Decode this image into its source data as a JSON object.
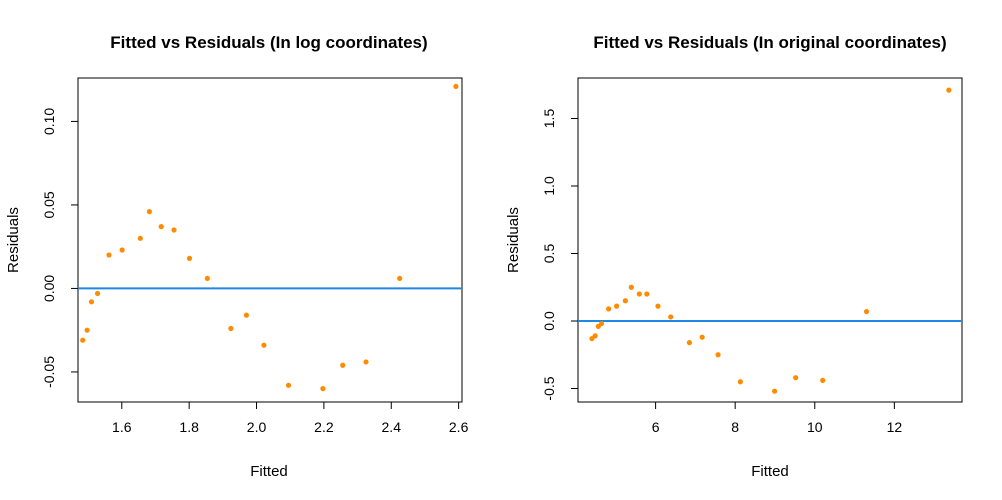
{
  "chart_data": [
    {
      "type": "scatter",
      "title": "Fitted vs Residuals (In log coordinates)",
      "xlabel": "Fitted",
      "ylabel": "Residuals",
      "xlim": [
        1.47,
        2.61
      ],
      "ylim": [
        -0.068,
        0.126
      ],
      "xticks": [
        1.6,
        1.8,
        2.0,
        2.2,
        2.4,
        2.6
      ],
      "xtick_labels": [
        "1.6",
        "1.8",
        "2.0",
        "2.2",
        "2.4",
        "2.6"
      ],
      "yticks": [
        -0.05,
        0.0,
        0.05,
        0.1
      ],
      "ytick_labels": [
        "-0.05",
        "0.00",
        "0.05",
        "0.10"
      ],
      "hline": 0,
      "hline_color": "#1e88e5",
      "point_color": "#ff8c00",
      "grid": false,
      "points": [
        {
          "x": 1.484,
          "y": -0.031
        },
        {
          "x": 1.497,
          "y": -0.025
        },
        {
          "x": 1.51,
          "y": -0.008
        },
        {
          "x": 1.528,
          "y": -0.003
        },
        {
          "x": 1.562,
          "y": 0.02
        },
        {
          "x": 1.601,
          "y": 0.023
        },
        {
          "x": 1.655,
          "y": 0.03
        },
        {
          "x": 1.682,
          "y": 0.046
        },
        {
          "x": 1.717,
          "y": 0.037
        },
        {
          "x": 1.755,
          "y": 0.035
        },
        {
          "x": 1.801,
          "y": 0.018
        },
        {
          "x": 1.854,
          "y": 0.006
        },
        {
          "x": 1.924,
          "y": -0.024
        },
        {
          "x": 1.97,
          "y": -0.016
        },
        {
          "x": 2.022,
          "y": -0.034
        },
        {
          "x": 2.095,
          "y": -0.058
        },
        {
          "x": 2.197,
          "y": -0.06
        },
        {
          "x": 2.256,
          "y": -0.046
        },
        {
          "x": 2.325,
          "y": -0.044
        },
        {
          "x": 2.425,
          "y": 0.006
        },
        {
          "x": 2.592,
          "y": 0.121
        }
      ]
    },
    {
      "type": "scatter",
      "title": "Fitted vs Residuals (In original coordinates)",
      "xlabel": "Fitted",
      "ylabel": "Residuals",
      "xlim": [
        4.05,
        13.7
      ],
      "ylim": [
        -0.6,
        1.8
      ],
      "xticks": [
        6,
        8,
        10,
        12
      ],
      "xtick_labels": [
        "6",
        "8",
        "10",
        "12"
      ],
      "yticks": [
        -0.5,
        0.0,
        0.5,
        1.0,
        1.5
      ],
      "ytick_labels": [
        "-0.5",
        "0.0",
        "0.5",
        "1.0",
        "1.5"
      ],
      "hline": 0,
      "hline_color": "#1e88e5",
      "point_color": "#ff8c00",
      "grid": false,
      "points": [
        {
          "x": 4.4,
          "y": -0.13
        },
        {
          "x": 4.48,
          "y": -0.11
        },
        {
          "x": 4.56,
          "y": -0.04
        },
        {
          "x": 4.64,
          "y": -0.02
        },
        {
          "x": 4.82,
          "y": 0.09
        },
        {
          "x": 5.02,
          "y": 0.11
        },
        {
          "x": 5.24,
          "y": 0.15
        },
        {
          "x": 5.39,
          "y": 0.25
        },
        {
          "x": 5.59,
          "y": 0.2
        },
        {
          "x": 5.78,
          "y": 0.2
        },
        {
          "x": 6.06,
          "y": 0.11
        },
        {
          "x": 6.38,
          "y": 0.03
        },
        {
          "x": 6.85,
          "y": -0.16
        },
        {
          "x": 7.17,
          "y": -0.12
        },
        {
          "x": 7.57,
          "y": -0.25
        },
        {
          "x": 8.13,
          "y": -0.45
        },
        {
          "x": 8.99,
          "y": -0.52
        },
        {
          "x": 9.52,
          "y": -0.42
        },
        {
          "x": 10.2,
          "y": -0.44
        },
        {
          "x": 11.3,
          "y": 0.07
        },
        {
          "x": 13.37,
          "y": 1.71
        }
      ]
    }
  ]
}
